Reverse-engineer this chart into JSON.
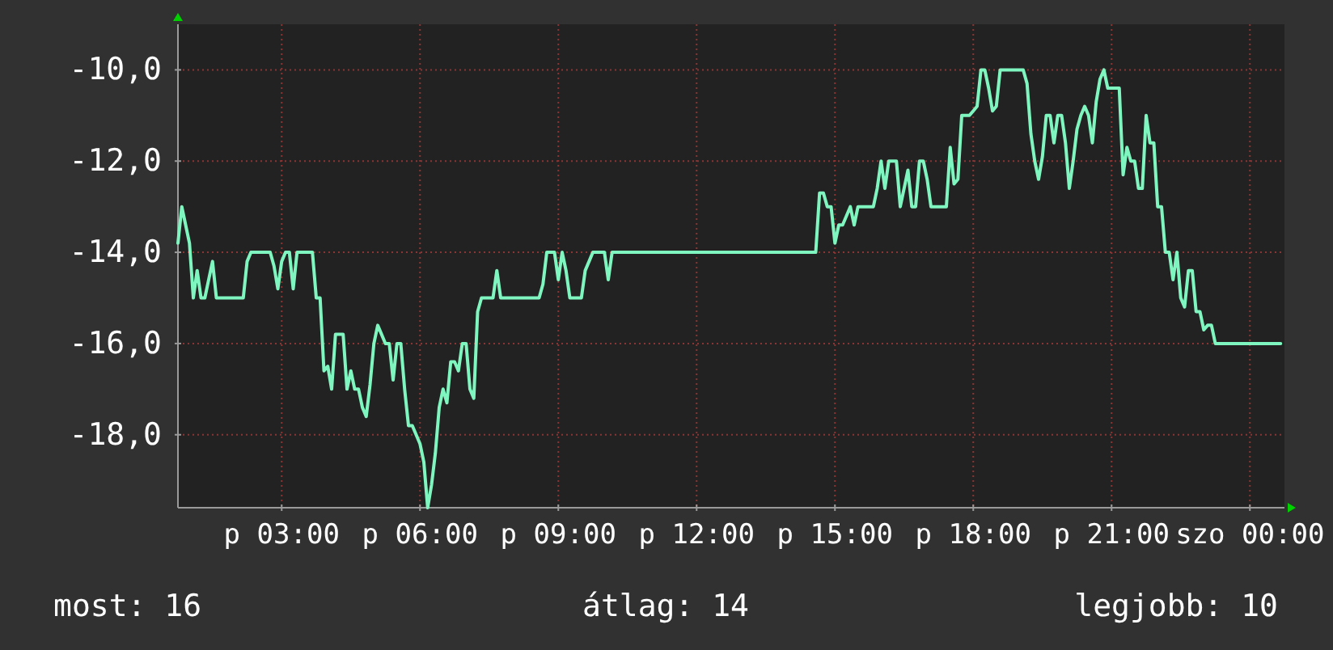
{
  "chart_data": {
    "type": "line",
    "color": "#7ff5bf",
    "categories": [
      null,
      null,
      null,
      null,
      null,
      null,
      null,
      null,
      null,
      null,
      null,
      null,
      null,
      null,
      null,
      null,
      null,
      null,
      null,
      null,
      null,
      null,
      null,
      null,
      null,
      null,
      null,
      "p 03:00",
      null,
      null,
      null,
      null,
      null,
      null,
      null,
      null,
      null,
      null,
      null,
      null,
      null,
      null,
      null,
      null,
      null,
      null,
      null,
      null,
      null,
      null,
      null,
      null,
      null,
      null,
      null,
      null,
      null,
      null,
      null,
      null,
      null,
      null,
      null,
      "p 06:00",
      null,
      null,
      null,
      null,
      null,
      null,
      null,
      null,
      null,
      null,
      null,
      null,
      null,
      null,
      null,
      null,
      null,
      null,
      null,
      null,
      null,
      null,
      null,
      null,
      null,
      null,
      null,
      null,
      null,
      null,
      null,
      null,
      null,
      null,
      null,
      "p 09:00",
      null,
      null,
      null,
      null,
      null,
      null,
      null,
      null,
      null,
      null,
      null,
      null,
      null,
      null,
      null,
      null,
      null,
      null,
      null,
      null,
      null,
      null,
      null,
      null,
      null,
      null,
      null,
      null,
      null,
      null,
      null,
      null,
      null,
      null,
      null,
      "p 12:00",
      null,
      null,
      null,
      null,
      null,
      null,
      null,
      null,
      null,
      null,
      null,
      null,
      null,
      null,
      null,
      null,
      null,
      null,
      null,
      null,
      null,
      null,
      null,
      null,
      null,
      null,
      null,
      null,
      null,
      null,
      null,
      null,
      null,
      null,
      null,
      "p 15:00",
      null,
      null,
      null,
      null,
      null,
      null,
      null,
      null,
      null,
      null,
      null,
      null,
      null,
      null,
      null,
      null,
      null,
      null,
      null,
      null,
      null,
      null,
      null,
      null,
      null,
      null,
      null,
      null,
      null,
      null,
      null,
      null,
      null,
      null,
      null,
      "p 18:00",
      null,
      null,
      null,
      null,
      null,
      null,
      null,
      null,
      null,
      null,
      null,
      null,
      null,
      null,
      null,
      null,
      null,
      null,
      null,
      null,
      null,
      null,
      null,
      null,
      null,
      null,
      null,
      null,
      null,
      null,
      null,
      null,
      null,
      null,
      null,
      "p 21:00",
      null,
      null,
      null,
      null,
      null,
      null,
      null,
      null,
      null,
      null,
      null,
      null,
      null,
      null,
      null,
      null,
      null,
      null,
      null,
      null,
      null,
      null,
      null,
      null,
      null,
      null,
      null,
      null,
      null,
      null,
      null,
      null,
      null,
      null,
      null,
      "szo 00:00",
      null,
      null,
      null,
      null,
      null,
      null,
      null,
      null,
      null
    ],
    "values": [
      -13.8,
      -13.0,
      -13.4,
      -13.8,
      -15.0,
      -14.4,
      -15.0,
      -15.0,
      -14.6,
      -14.2,
      -15.0,
      -15.0,
      -15.0,
      -15.0,
      -15.0,
      -15.0,
      -15.0,
      -15.0,
      -14.2,
      -14.0,
      -14.0,
      -14.0,
      -14.0,
      -14.0,
      -14.0,
      -14.3,
      -14.8,
      -14.2,
      -14.0,
      -14.0,
      -14.8,
      -14.0,
      -14.0,
      -14.0,
      -14.0,
      -14.0,
      -15.0,
      -15.0,
      -16.6,
      -16.5,
      -17.0,
      -15.8,
      -15.8,
      -15.8,
      -17.0,
      -16.6,
      -17.0,
      -17.0,
      -17.4,
      -17.6,
      -16.9,
      -16.0,
      -15.6,
      -15.8,
      -16.0,
      -16.0,
      -16.8,
      -16.0,
      -16.0,
      -17.0,
      -17.8,
      -17.8,
      -18.0,
      -18.2,
      -18.6,
      -19.6,
      -19.1,
      -18.4,
      -17.4,
      -17.0,
      -17.3,
      -16.4,
      -16.4,
      -16.6,
      -16.0,
      -16.0,
      -17.0,
      -17.2,
      -15.3,
      -15.0,
      -15.0,
      -15.0,
      -15.0,
      -14.4,
      -15.0,
      -15.0,
      -15.0,
      -15.0,
      -15.0,
      -15.0,
      -15.0,
      -15.0,
      -15.0,
      -15.0,
      -15.0,
      -14.7,
      -14.0,
      -14.0,
      -14.0,
      -14.6,
      -14.0,
      -14.4,
      -15.0,
      -15.0,
      -15.0,
      -15.0,
      -14.4,
      -14.2,
      -14.0,
      -14.0,
      -14.0,
      -14.0,
      -14.6,
      -14.0,
      -14.0,
      -14.0,
      -14.0,
      -14.0,
      -14.0,
      -14.0,
      -14.0,
      -14.0,
      -14.0,
      -14.0,
      -14.0,
      -14.0,
      -14.0,
      -14.0,
      -14.0,
      -14.0,
      -14.0,
      -14.0,
      -14.0,
      -14.0,
      -14.0,
      -14.0,
      -14.0,
      -14.0,
      -14.0,
      -14.0,
      -14.0,
      -14.0,
      -14.0,
      -14.0,
      -14.0,
      -14.0,
      -14.0,
      -14.0,
      -14.0,
      -14.0,
      -14.0,
      -14.0,
      -14.0,
      -14.0,
      -14.0,
      -14.0,
      -14.0,
      -14.0,
      -14.0,
      -14.0,
      -14.0,
      -14.0,
      -14.0,
      -14.0,
      -14.0,
      -14.0,
      -14.0,
      -12.7,
      -12.7,
      -13.0,
      -13.0,
      -13.8,
      -13.4,
      -13.4,
      -13.2,
      -13.0,
      -13.4,
      -13.0,
      -13.0,
      -13.0,
      -13.0,
      -13.0,
      -12.6,
      -12.0,
      -12.6,
      -12.0,
      -12.0,
      -12.0,
      -13.0,
      -12.6,
      -12.2,
      -13.0,
      -13.0,
      -12.0,
      -12.0,
      -12.4,
      -13.0,
      -13.0,
      -13.0,
      -13.0,
      -13.0,
      -11.7,
      -12.5,
      -12.4,
      -11.0,
      -11.0,
      -11.0,
      -10.9,
      -10.8,
      -10.0,
      -10.0,
      -10.4,
      -10.9,
      -10.8,
      -10.0,
      -10.0,
      -10.0,
      -10.0,
      -10.0,
      -10.0,
      -10.0,
      -10.3,
      -11.4,
      -12.0,
      -12.4,
      -11.9,
      -11.0,
      -11.0,
      -11.6,
      -11.0,
      -11.0,
      -11.6,
      -12.6,
      -12.0,
      -11.3,
      -11.0,
      -10.8,
      -11.0,
      -11.6,
      -10.7,
      -10.2,
      -10.0,
      -10.4,
      -10.4,
      -10.4,
      -10.4,
      -12.3,
      -11.7,
      -12.0,
      -12.0,
      -12.6,
      -12.6,
      -11.0,
      -11.6,
      -11.6,
      -13.0,
      -13.0,
      -14.0,
      -14.0,
      -14.6,
      -14.0,
      -15.0,
      -15.2,
      -14.4,
      -14.4,
      -15.3,
      -15.3,
      -15.7,
      -15.6,
      -15.6,
      -16.0,
      -16.0,
      -16.0,
      -16.0,
      -16.0,
      -16.0,
      -16.0,
      -16.0,
      -16.0,
      -16.0,
      -16.0,
      -16.0,
      -16.0,
      -16.0,
      -16.0,
      -16.0,
      -16.0,
      -16.0,
      null
    ],
    "ylim": [
      -19.6,
      -9
    ],
    "yticks": [
      {
        "value": -18,
        "label": "-18,0"
      },
      {
        "value": -16,
        "label": "-16,0"
      },
      {
        "value": -14,
        "label": "-14,0"
      },
      {
        "value": -12,
        "label": "-12,0"
      },
      {
        "value": -10,
        "label": "-10,0"
      }
    ],
    "grid": true,
    "annotations": [
      "most: 16",
      "átlag: 14",
      "legjobb: 10"
    ]
  }
}
